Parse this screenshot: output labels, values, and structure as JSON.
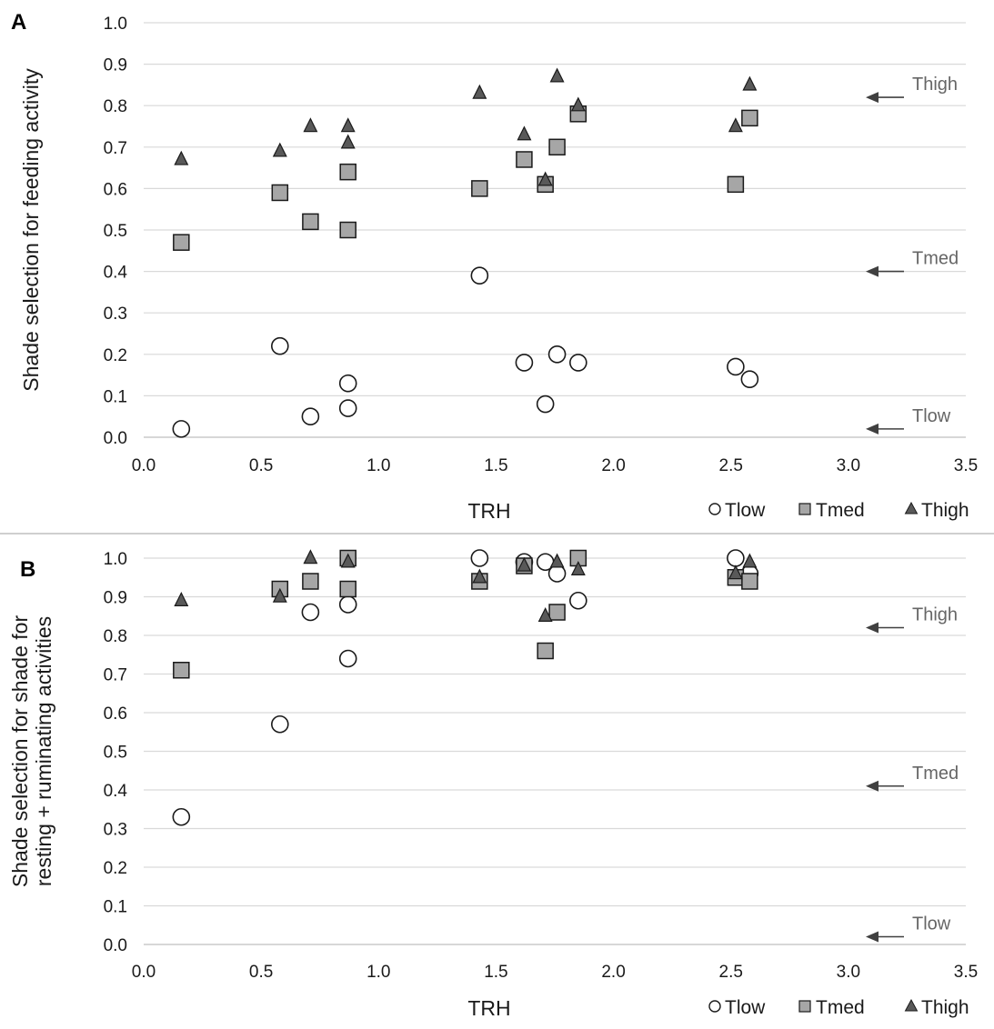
{
  "colors": {
    "circle_fill": "#ffffff",
    "square_fill": "#a6a6a6",
    "triangle_fill": "#595959",
    "marker_stroke": "#1a1a1a",
    "ref_text": "#666666",
    "arrow": "#404040"
  },
  "chart_data": [
    {
      "panel_letter": "A",
      "type": "scatter",
      "xlabel": "TRH",
      "ylabel_lines": [
        "Shade selection for feeding activity"
      ],
      "xlim": [
        0,
        3.5
      ],
      "ylim": [
        0,
        1.0
      ],
      "xticks": [
        "0.0",
        "0.5",
        "1.0",
        "1.5",
        "2.0",
        "2.5",
        "3.0",
        "3.5"
      ],
      "yticks": [
        "0.0",
        "0.1",
        "0.2",
        "0.3",
        "0.4",
        "0.5",
        "0.6",
        "0.7",
        "0.8",
        "0.9",
        "1.0"
      ],
      "grid": true,
      "legend_position": "bottom-right",
      "series": [
        {
          "name": "Tlow",
          "marker": "circle",
          "x": [
            0.16,
            0.58,
            0.71,
            0.87,
            0.87,
            1.43,
            1.62,
            1.71,
            1.76,
            1.85,
            2.52,
            2.58
          ],
          "y": [
            0.02,
            0.22,
            0.05,
            0.07,
            0.13,
            0.39,
            0.18,
            0.08,
            0.2,
            0.18,
            0.17,
            0.14
          ]
        },
        {
          "name": "Tmed",
          "marker": "square",
          "x": [
            0.16,
            0.58,
            0.71,
            0.87,
            0.87,
            1.43,
            1.62,
            1.71,
            1.76,
            1.85,
            2.52,
            2.58
          ],
          "y": [
            0.47,
            0.59,
            0.52,
            0.5,
            0.64,
            0.6,
            0.67,
            0.61,
            0.7,
            0.78,
            0.61,
            0.77
          ]
        },
        {
          "name": "Thigh",
          "marker": "triangle",
          "x": [
            0.16,
            0.58,
            0.71,
            0.87,
            0.87,
            1.43,
            1.62,
            1.71,
            1.76,
            1.85,
            2.52,
            2.58
          ],
          "y": [
            0.67,
            0.69,
            0.75,
            0.75,
            0.71,
            0.83,
            0.73,
            0.62,
            0.87,
            0.8,
            0.75,
            0.85
          ]
        }
      ],
      "reference_lines": [
        {
          "label": "Thigh",
          "value": 0.82
        },
        {
          "label": "Tmed",
          "value": 0.4
        },
        {
          "label": "Tlow",
          "value": 0.02
        }
      ]
    },
    {
      "panel_letter": "B",
      "type": "scatter",
      "xlabel": "TRH",
      "ylabel_lines": [
        "Shade selection for shade for",
        "resting + ruminating activities"
      ],
      "xlim": [
        0,
        3.5
      ],
      "ylim": [
        0,
        1.0
      ],
      "xticks": [
        "0.0",
        "0.5",
        "1.0",
        "1.5",
        "2.0",
        "2.5",
        "3.0",
        "3.5"
      ],
      "yticks": [
        "0.0",
        "0.1",
        "0.2",
        "0.3",
        "0.4",
        "0.5",
        "0.6",
        "0.7",
        "0.8",
        "0.9",
        "1.0"
      ],
      "grid": true,
      "legend_position": "bottom-right",
      "series": [
        {
          "name": "Tlow",
          "marker": "circle",
          "x": [
            0.16,
            0.58,
            0.71,
            0.87,
            0.87,
            1.43,
            1.62,
            1.71,
            1.76,
            1.85,
            2.52,
            2.58
          ],
          "y": [
            0.33,
            0.57,
            0.86,
            0.88,
            0.74,
            1.0,
            0.99,
            0.99,
            0.96,
            0.89,
            1.0,
            0.96
          ]
        },
        {
          "name": "Tmed",
          "marker": "square",
          "x": [
            0.16,
            0.58,
            0.71,
            0.87,
            0.87,
            1.43,
            1.62,
            1.71,
            1.76,
            1.85,
            2.52,
            2.58
          ],
          "y": [
            0.71,
            0.92,
            0.94,
            1.0,
            0.92,
            0.94,
            0.98,
            0.76,
            0.86,
            1.0,
            0.95,
            0.94
          ]
        },
        {
          "name": "Thigh",
          "marker": "triangle",
          "x": [
            0.16,
            0.58,
            0.71,
            0.87,
            1.43,
            1.62,
            1.71,
            1.76,
            1.85,
            2.52,
            2.58
          ],
          "y": [
            0.89,
            0.9,
            1.0,
            0.99,
            0.95,
            0.98,
            0.85,
            0.99,
            0.97,
            0.96,
            0.99
          ]
        }
      ],
      "reference_lines": [
        {
          "label": "Thigh",
          "value": 0.82
        },
        {
          "label": "Tmed",
          "value": 0.41
        },
        {
          "label": "Tlow",
          "value": 0.02
        }
      ]
    }
  ]
}
